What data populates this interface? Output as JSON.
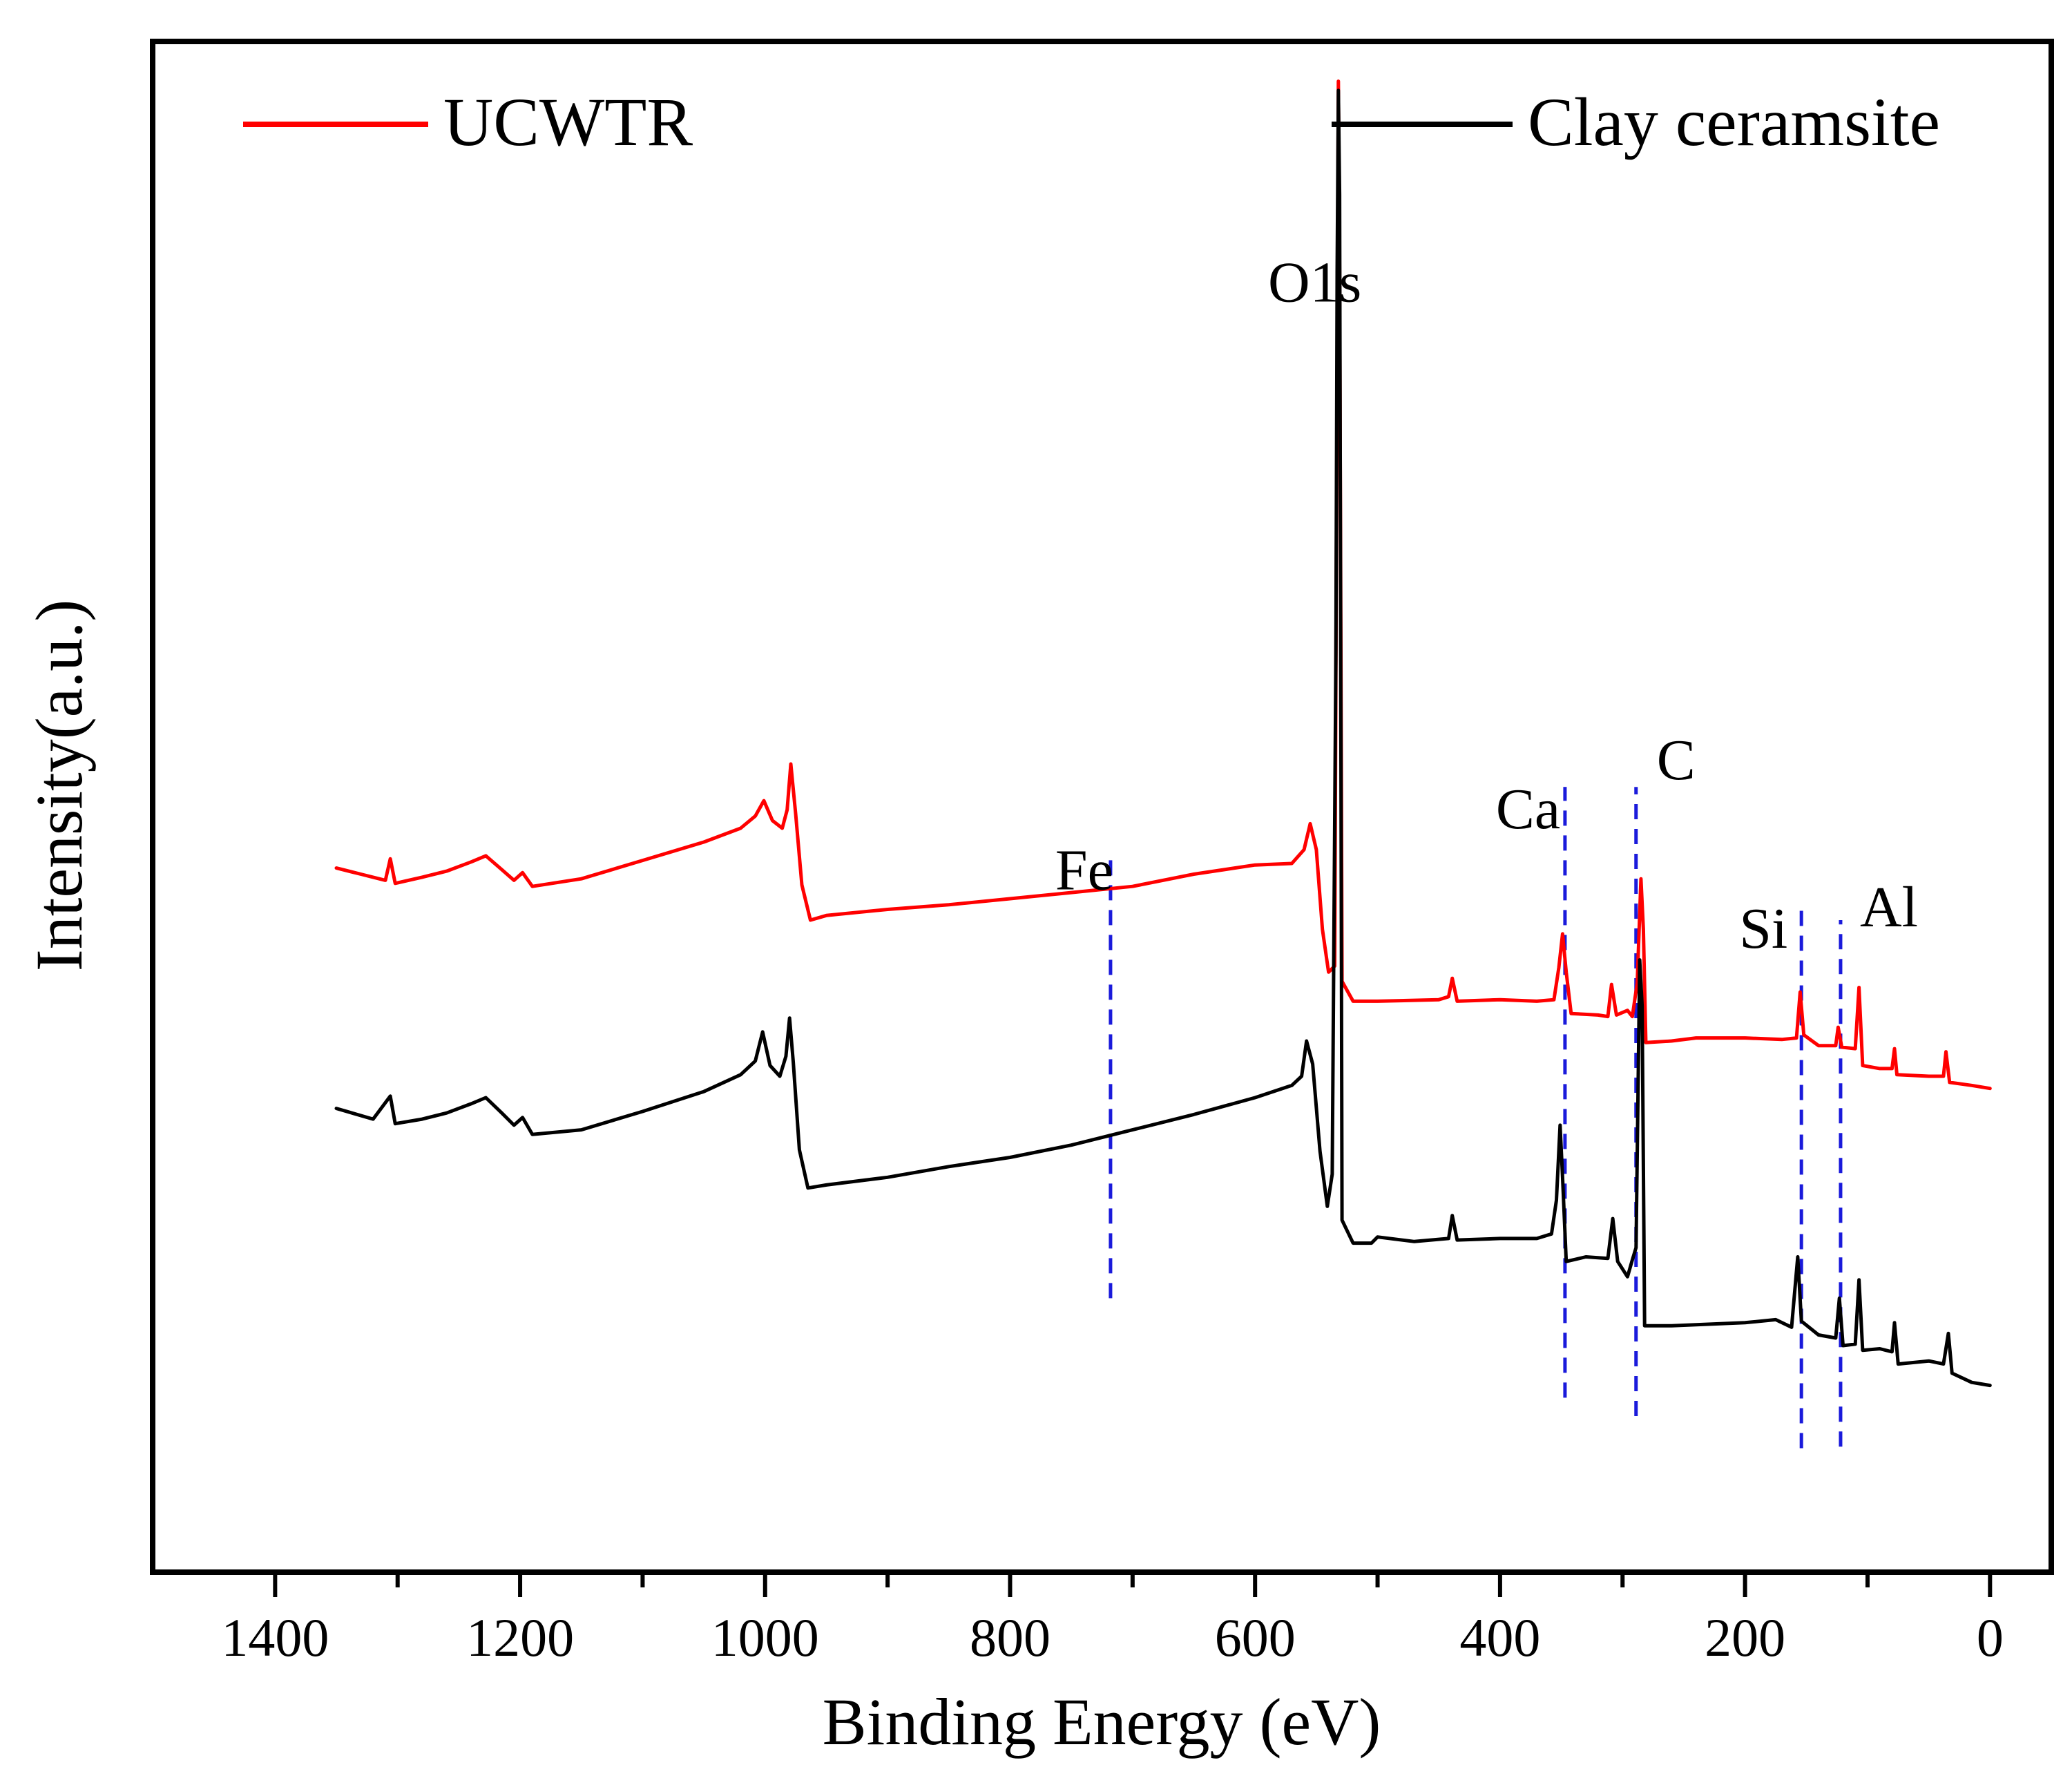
{
  "chart_data": {
    "type": "line",
    "title": "",
    "xlabel": "Binding Energy (eV)",
    "ylabel": "Intensity(a.u.)",
    "xlim": [
      1500,
      -50
    ],
    "x_reversed": true,
    "ylim": [
      0,
      100
    ],
    "xticks": [
      1400,
      1200,
      1000,
      800,
      600,
      400,
      200,
      0
    ],
    "xtick_labels": [
      "1400",
      "1200",
      "1000",
      "800",
      "600",
      "400",
      "200",
      "0"
    ],
    "grid": false,
    "legend_position": "top",
    "series": [
      {
        "name": "UCWTR",
        "color": "#ff0000",
        "points": [
          [
            1350,
            46
          ],
          [
            1330,
            45.6
          ],
          [
            1310,
            45.2
          ],
          [
            1306,
            46.6
          ],
          [
            1302,
            45
          ],
          [
            1280,
            45.4
          ],
          [
            1260,
            45.8
          ],
          [
            1240,
            46.4
          ],
          [
            1228,
            46.8
          ],
          [
            1215,
            45.9
          ],
          [
            1205,
            45.2
          ],
          [
            1198,
            45.7
          ],
          [
            1190,
            44.8
          ],
          [
            1150,
            45.3
          ],
          [
            1100,
            46.5
          ],
          [
            1050,
            47.7
          ],
          [
            1020,
            48.6
          ],
          [
            1008,
            49.4
          ],
          [
            1001,
            50.4
          ],
          [
            994,
            49.1
          ],
          [
            986,
            48.6
          ],
          [
            982,
            49.8
          ],
          [
            979,
            52.8
          ],
          [
            975,
            49.5
          ],
          [
            970,
            44.9
          ],
          [
            963,
            42.6
          ],
          [
            950,
            42.9
          ],
          [
            900,
            43.3
          ],
          [
            850,
            43.6
          ],
          [
            800,
            44
          ],
          [
            750,
            44.4
          ],
          [
            700,
            44.8
          ],
          [
            650,
            45.6
          ],
          [
            600,
            46.2
          ],
          [
            570,
            46.3
          ],
          [
            560,
            47.2
          ],
          [
            555,
            48.9
          ],
          [
            550,
            47.2
          ],
          [
            545,
            42
          ],
          [
            540,
            39.2
          ],
          [
            535,
            39.6
          ],
          [
            533,
            79
          ],
          [
            532,
            97.4
          ],
          [
            531,
            85
          ],
          [
            529,
            38.6
          ],
          [
            520,
            37.3
          ],
          [
            500,
            37.3
          ],
          [
            450,
            37.4
          ],
          [
            442,
            37.6
          ],
          [
            439,
            38.8
          ],
          [
            435,
            37.3
          ],
          [
            400,
            37.4
          ],
          [
            370,
            37.3
          ],
          [
            356,
            37.4
          ],
          [
            352,
            39.5
          ],
          [
            349,
            41.7
          ],
          [
            346,
            39.2
          ],
          [
            342,
            36.5
          ],
          [
            320,
            36.4
          ],
          [
            312,
            36.3
          ],
          [
            309,
            38.4
          ],
          [
            305,
            36.4
          ],
          [
            296,
            36.7
          ],
          [
            292,
            36.3
          ],
          [
            288,
            38.5
          ],
          [
            285,
            45.3
          ],
          [
            283,
            42
          ],
          [
            281,
            34.6
          ],
          [
            260,
            34.7
          ],
          [
            240,
            34.9
          ],
          [
            200,
            34.9
          ],
          [
            170,
            34.8
          ],
          [
            158,
            34.9
          ],
          [
            155,
            37.9
          ],
          [
            152,
            35.1
          ],
          [
            140,
            34.4
          ],
          [
            126,
            34.4
          ],
          [
            124,
            35.6
          ],
          [
            121,
            34.3
          ],
          [
            110,
            34.2
          ],
          [
            107,
            38.2
          ],
          [
            104,
            33.1
          ],
          [
            90,
            32.9
          ],
          [
            80,
            32.9
          ],
          [
            78,
            34.2
          ],
          [
            76,
            32.5
          ],
          [
            50,
            32.4
          ],
          [
            38,
            32.4
          ],
          [
            36,
            34
          ],
          [
            33,
            32
          ],
          [
            15,
            31.8
          ],
          [
            0,
            31.6
          ]
        ]
      },
      {
        "name": "Clay ceramsite",
        "color": "#000000",
        "points": [
          [
            1350,
            30.3
          ],
          [
            1320,
            29.6
          ],
          [
            1306,
            31.1
          ],
          [
            1302,
            29.3
          ],
          [
            1280,
            29.6
          ],
          [
            1260,
            30
          ],
          [
            1240,
            30.6
          ],
          [
            1228,
            31
          ],
          [
            1215,
            30
          ],
          [
            1205,
            29.2
          ],
          [
            1198,
            29.7
          ],
          [
            1190,
            28.6
          ],
          [
            1150,
            28.9
          ],
          [
            1100,
            30.1
          ],
          [
            1050,
            31.4
          ],
          [
            1020,
            32.5
          ],
          [
            1008,
            33.4
          ],
          [
            1002,
            35.3
          ],
          [
            996,
            33.1
          ],
          [
            988,
            32.4
          ],
          [
            983,
            33.7
          ],
          [
            980,
            36.2
          ],
          [
            977,
            33.3
          ],
          [
            972,
            27.6
          ],
          [
            965,
            25.1
          ],
          [
            950,
            25.3
          ],
          [
            900,
            25.8
          ],
          [
            850,
            26.5
          ],
          [
            800,
            27.1
          ],
          [
            750,
            27.9
          ],
          [
            700,
            28.9
          ],
          [
            650,
            29.9
          ],
          [
            600,
            31
          ],
          [
            570,
            31.8
          ],
          [
            562,
            32.4
          ],
          [
            558,
            34.7
          ],
          [
            553,
            33.2
          ],
          [
            547,
            27.5
          ],
          [
            541,
            23.9
          ],
          [
            537,
            26
          ],
          [
            534,
            60
          ],
          [
            533,
            85
          ],
          [
            532,
            96.8
          ],
          [
            531,
            90
          ],
          [
            529,
            23
          ],
          [
            520,
            21.5
          ],
          [
            505,
            21.5
          ],
          [
            500,
            21.9
          ],
          [
            470,
            21.6
          ],
          [
            442,
            21.8
          ],
          [
            439,
            23.3
          ],
          [
            435,
            21.7
          ],
          [
            400,
            21.8
          ],
          [
            370,
            21.8
          ],
          [
            358,
            22.1
          ],
          [
            354,
            24.3
          ],
          [
            351,
            29.2
          ],
          [
            349,
            25.8
          ],
          [
            346,
            20.3
          ],
          [
            330,
            20.6
          ],
          [
            312,
            20.5
          ],
          [
            308,
            23.1
          ],
          [
            304,
            20.3
          ],
          [
            296,
            19.3
          ],
          [
            292,
            20.4
          ],
          [
            289,
            21.2
          ],
          [
            286,
            40
          ],
          [
            284,
            37
          ],
          [
            282,
            16.1
          ],
          [
            260,
            16.1
          ],
          [
            230,
            16.2
          ],
          [
            200,
            16.3
          ],
          [
            175,
            16.5
          ],
          [
            162,
            16
          ],
          [
            157,
            20.6
          ],
          [
            154,
            16.4
          ],
          [
            140,
            15.5
          ],
          [
            126,
            15.3
          ],
          [
            123,
            17.9
          ],
          [
            120,
            14.8
          ],
          [
            110,
            14.9
          ],
          [
            107,
            19.1
          ],
          [
            104,
            14.5
          ],
          [
            90,
            14.6
          ],
          [
            80,
            14.4
          ],
          [
            78,
            16.3
          ],
          [
            75,
            13.6
          ],
          [
            50,
            13.8
          ],
          [
            38,
            13.6
          ],
          [
            34,
            15.6
          ],
          [
            31,
            13
          ],
          [
            15,
            12.4
          ],
          [
            0,
            12.2
          ]
        ]
      }
    ],
    "annotations": [
      {
        "text": "Fe",
        "x": 718,
        "label_y": 44.6,
        "line_from": 17.9,
        "line_to": 46.9
      },
      {
        "text": "O1s",
        "x": 533,
        "label_y": 83
      },
      {
        "text": "Ca",
        "x": 347,
        "label_y": 48.6,
        "line_from": 11.4,
        "line_to": 51.3
      },
      {
        "text": "C",
        "x": 289,
        "label_y": 51.8,
        "line_from": 10.2,
        "line_to": 51.3
      },
      {
        "text": "Si",
        "x": 154,
        "label_y": 40.8,
        "line_from": 8.1,
        "line_to": 43.6
      },
      {
        "text": "Al",
        "x": 122,
        "label_y": 42.2,
        "line_from": 8.2,
        "line_to": 42.6
      }
    ]
  }
}
